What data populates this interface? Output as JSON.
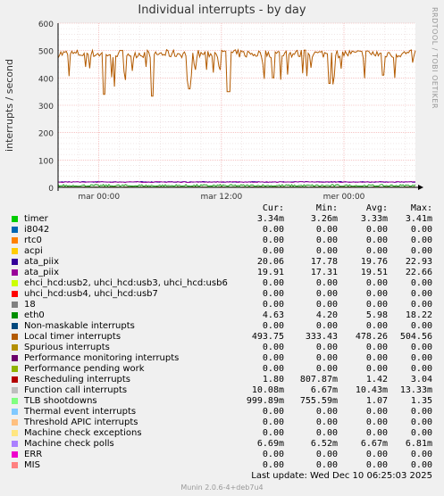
{
  "title": "Individual interrupts - by day",
  "side_text": "RRDTOOL / TOBI OETIKER",
  "footer": "Munin 2.0.6-4+deb7u4",
  "last_update": "Last update:  Wed Dec 10 06:25:03 2025",
  "legend_headers": {
    "cur": "Cur:",
    "min": "Min:",
    "avg": "Avg:",
    "max": "Max:"
  },
  "rows": [
    {
      "label": "timer",
      "color": "#00cc00",
      "cur": "3.34m",
      "min": "3.26m",
      "avg": "3.33m",
      "max": "3.41m"
    },
    {
      "label": "i8042",
      "color": "#0066b3",
      "cur": "0.00",
      "min": "0.00",
      "avg": "0.00",
      "max": "0.00"
    },
    {
      "label": "rtc0",
      "color": "#ff8000",
      "cur": "0.00",
      "min": "0.00",
      "avg": "0.00",
      "max": "0.00"
    },
    {
      "label": "acpi",
      "color": "#ffcc00",
      "cur": "0.00",
      "min": "0.00",
      "avg": "0.00",
      "max": "0.00"
    },
    {
      "label": "ata_piix",
      "color": "#330099",
      "cur": "20.06",
      "min": "17.78",
      "avg": "19.76",
      "max": "22.93"
    },
    {
      "label": "ata_piix",
      "color": "#990099",
      "cur": "19.91",
      "min": "17.31",
      "avg": "19.51",
      "max": "22.66"
    },
    {
      "label": "ehci_hcd:usb2, uhci_hcd:usb3, uhci_hcd:usb6",
      "color": "#ccff00",
      "cur": "0.00",
      "min": "0.00",
      "avg": "0.00",
      "max": "0.00"
    },
    {
      "label": "uhci_hcd:usb4, uhci_hcd:usb7",
      "color": "#ff0000",
      "cur": "0.00",
      "min": "0.00",
      "avg": "0.00",
      "max": "0.00"
    },
    {
      "label": "18",
      "color": "#808080",
      "cur": "0.00",
      "min": "0.00",
      "avg": "0.00",
      "max": "0.00"
    },
    {
      "label": "eth0",
      "color": "#008f00",
      "cur": "4.63",
      "min": "4.20",
      "avg": "5.98",
      "max": "18.22"
    },
    {
      "label": "Non-maskable interrupts",
      "color": "#00487d",
      "cur": "0.00",
      "min": "0.00",
      "avg": "0.00",
      "max": "0.00"
    },
    {
      "label": "Local timer interrupts",
      "color": "#b35a00",
      "cur": "493.75",
      "min": "333.43",
      "avg": "478.26",
      "max": "504.56"
    },
    {
      "label": "Spurious interrupts",
      "color": "#b38f00",
      "cur": "0.00",
      "min": "0.00",
      "avg": "0.00",
      "max": "0.00"
    },
    {
      "label": "Performance monitoring interrupts",
      "color": "#6b006b",
      "cur": "0.00",
      "min": "0.00",
      "avg": "0.00",
      "max": "0.00"
    },
    {
      "label": "Performance pending work",
      "color": "#8fb300",
      "cur": "0.00",
      "min": "0.00",
      "avg": "0.00",
      "max": "0.00"
    },
    {
      "label": "Rescheduling interrupts",
      "color": "#b30000",
      "cur": "1.80",
      "min": "807.87m",
      "avg": "1.42",
      "max": "3.04"
    },
    {
      "label": "Function call interrupts",
      "color": "#bebebe",
      "cur": "10.08m",
      "min": "6.67m",
      "avg": "10.43m",
      "max": "13.33m"
    },
    {
      "label": "TLB shootdowns",
      "color": "#80ff80",
      "cur": "999.89m",
      "min": "755.59m",
      "avg": "1.07",
      "max": "1.35"
    },
    {
      "label": "Thermal event interrupts",
      "color": "#80c9ff",
      "cur": "0.00",
      "min": "0.00",
      "avg": "0.00",
      "max": "0.00"
    },
    {
      "label": "Threshold APIC interrupts",
      "color": "#ffc080",
      "cur": "0.00",
      "min": "0.00",
      "avg": "0.00",
      "max": "0.00"
    },
    {
      "label": "Machine check exceptions",
      "color": "#ffe680",
      "cur": "0.00",
      "min": "0.00",
      "avg": "0.00",
      "max": "0.00"
    },
    {
      "label": "Machine check polls",
      "color": "#aa80ff",
      "cur": "6.69m",
      "min": "6.52m",
      "avg": "6.67m",
      "max": "6.81m"
    },
    {
      "label": "ERR",
      "color": "#ee00cc",
      "cur": "0.00",
      "min": "0.00",
      "avg": "0.00",
      "max": "0.00"
    },
    {
      "label": "MIS",
      "color": "#ff8080",
      "cur": "0.00",
      "min": "0.00",
      "avg": "0.00",
      "max": "0.00"
    }
  ],
  "chart_data": {
    "type": "line",
    "title": "Individual interrupts - by day",
    "ylabel": "interrupts / second",
    "ylim": [
      0,
      600
    ],
    "yticks": [
      0,
      100,
      200,
      300,
      400,
      500,
      600
    ],
    "xlim": [
      -4,
      31
    ],
    "xticks": [
      {
        "label": "mar 00:00",
        "x": 0
      },
      {
        "label": "mar 12:00",
        "x": 12
      },
      {
        "label": "mer 00:00",
        "x": 24
      }
    ],
    "grid": true,
    "series": [
      {
        "name": "Local timer interrupts",
        "color": "#b35a00",
        "base": 478.26,
        "min": 333.43,
        "max": 504.56,
        "dips": [
          [
            0.5,
            340
          ],
          [
            5.2,
            333
          ],
          [
            8.9,
            360
          ],
          [
            12.7,
            350
          ],
          [
            17.1,
            400
          ],
          [
            22.6,
            380
          ],
          [
            27.8,
            410
          ]
        ]
      },
      {
        "name": "ata_piix",
        "color": "#330099",
        "base": 19.76,
        "min": 17.78,
        "max": 22.93
      },
      {
        "name": "ata_piix",
        "color": "#990099",
        "base": 19.51,
        "min": 17.31,
        "max": 22.66
      },
      {
        "name": "eth0",
        "color": "#008f00",
        "base": 5.98,
        "min": 4.2,
        "max": 18.22
      },
      {
        "name": "Rescheduling interrupts",
        "color": "#b30000",
        "base": 1.42,
        "min": 0.81,
        "max": 3.04
      },
      {
        "name": "TLB shootdowns",
        "color": "#80ff80",
        "base": 1.07,
        "min": 0.76,
        "max": 1.35
      }
    ]
  }
}
